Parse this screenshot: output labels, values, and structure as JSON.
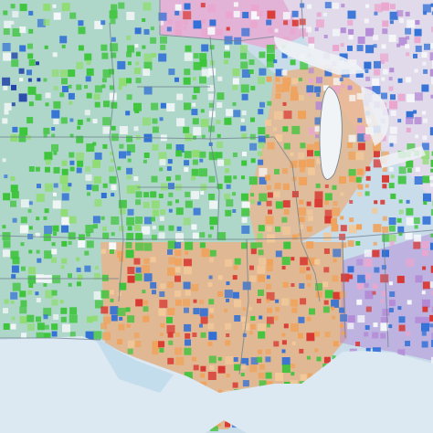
{
  "map": {
    "palette": {
      "land": "#c9dcea",
      "water": "#b9d7ea",
      "ocean_light": "#dce9f2",
      "border": "#6d7f8e",
      "green": "#3cc43a",
      "green_light": "#8fdc72",
      "blue": "#2f6fd6",
      "blue_dark": "#1f3fa8",
      "orange": "#f0a25a",
      "orange_light": "#f3c99a",
      "red": "#d8362f",
      "pink": "#eaa6cf",
      "purple": "#b48ad6",
      "white": "#f6f8fa"
    },
    "regions": [
      {
        "name": "northwest-green-zone",
        "color_key": "green"
      },
      {
        "name": "northeast-pink-zone",
        "color_key": "pink"
      },
      {
        "name": "great-lakes-orange-zone",
        "color_key": "orange"
      },
      {
        "name": "southern-orange-zone",
        "color_key": "orange"
      },
      {
        "name": "southeast-pink-purple-zone",
        "color_key": "purple"
      }
    ]
  }
}
